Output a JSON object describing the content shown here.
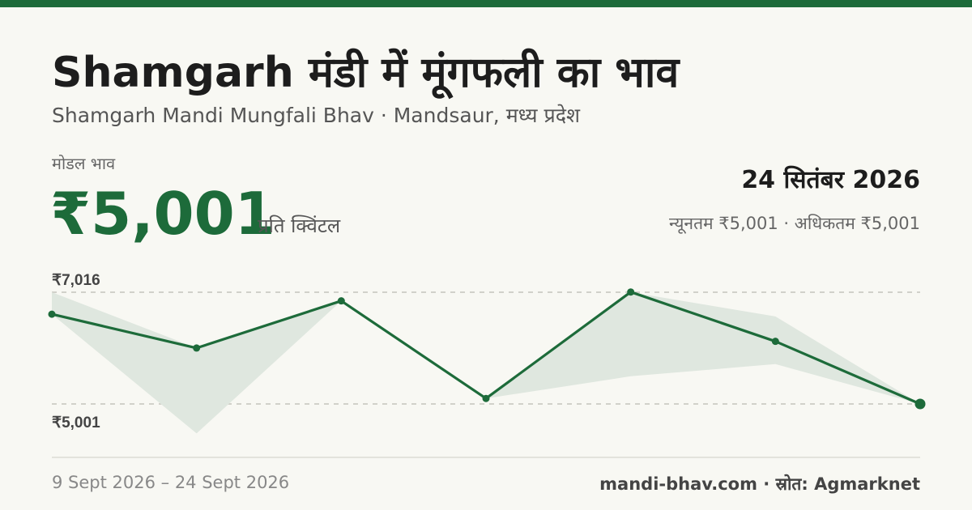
{
  "header": {
    "title": "Shamgarh मंडी में मूंगफली का भाव",
    "subtitle": "Shamgarh Mandi Mungfali Bhav · Mandsaur, मध्य प्रदेश"
  },
  "summary": {
    "modal_label": "मोडल भाव",
    "modal_price": "₹5,001",
    "unit": "प्रति क्विंटल",
    "date": "24 सितंबर 2026",
    "min_max": "न्यूनतम ₹5,001 · अधिकतम ₹5,001"
  },
  "colors": {
    "accent": "#1d6b3a",
    "band": "#dfe7df",
    "background": "#f8f8f3"
  },
  "chart_data": {
    "type": "line",
    "y_max_label": "₹7,016",
    "y_min_label": "₹5,001",
    "ylim": [
      5001,
      7016
    ],
    "grid": "dashed reference lines at max and min",
    "series": [
      {
        "values": [
          6620,
          6010,
          6860,
          5100,
          7020,
          6130,
          5001
        ]
      }
    ],
    "band": {
      "upper": [
        7016,
        6010,
        6860,
        5100,
        7016,
        6580,
        5001
      ],
      "lower": [
        6620,
        4470,
        6860,
        5100,
        5500,
        5720,
        5001
      ]
    }
  },
  "footer": {
    "date_range": "9 Sept 2026 – 24 Sept 2026",
    "source": "mandi-bhav.com · स्रोत: Agmarknet"
  }
}
